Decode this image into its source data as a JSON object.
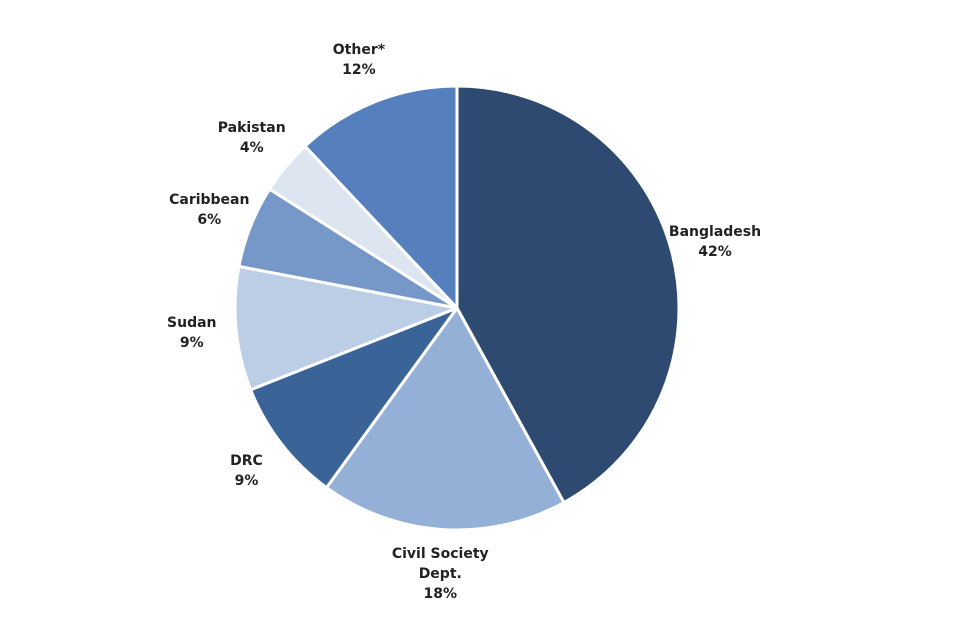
{
  "chart_data": {
    "type": "pie",
    "categories": [
      "Bangladesh",
      "Civil Society Dept.",
      "DRC",
      "Sudan",
      "Caribbean",
      "Pakistan",
      "Other*"
    ],
    "values": [
      42,
      18,
      9,
      9,
      6,
      4,
      12
    ],
    "value_labels": [
      "42%",
      "18%",
      "9%",
      "9%",
      "6%",
      "4%",
      "12%"
    ],
    "colors": [
      "#2e4a70",
      "#95b0d6",
      "#3a6397",
      "#bccde6",
      "#7598c8",
      "#dde5f1",
      "#5580bd"
    ]
  }
}
